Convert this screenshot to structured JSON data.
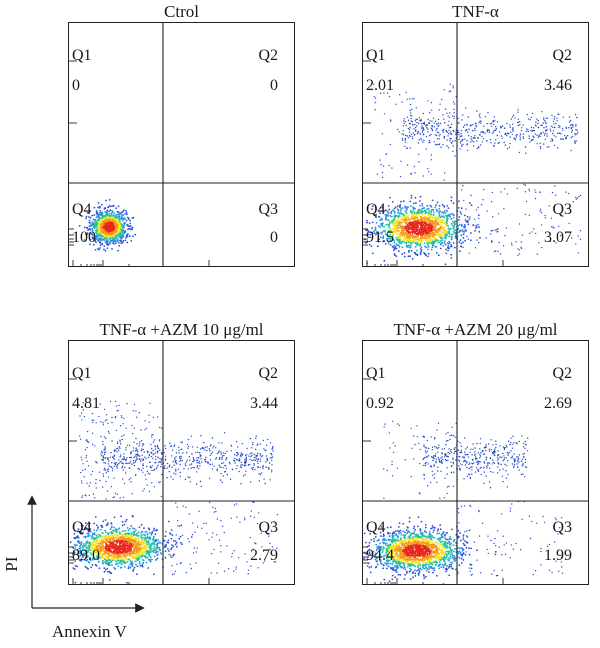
{
  "chart_data": [
    {
      "type": "scatter",
      "title": "Ctrol",
      "quadrants": {
        "Q1": {
          "label": "Q1",
          "value": "0"
        },
        "Q2": {
          "label": "Q2",
          "value": "0"
        },
        "Q3": {
          "label": "Q3",
          "value": "0"
        },
        "Q4": {
          "label": "Q4",
          "value": "100"
        }
      }
    },
    {
      "type": "scatter",
      "title": "TNF-α",
      "quadrants": {
        "Q1": {
          "label": "Q1",
          "value": "2.01"
        },
        "Q2": {
          "label": "Q2",
          "value": "3.46"
        },
        "Q3": {
          "label": "Q3",
          "value": "3.07"
        },
        "Q4": {
          "label": "Q4",
          "value": "91.5"
        }
      }
    },
    {
      "type": "scatter",
      "title": "TNF-α +AZM 10 μg/ml",
      "quadrants": {
        "Q1": {
          "label": "Q1",
          "value": "4.81"
        },
        "Q2": {
          "label": "Q2",
          "value": "3.44"
        },
        "Q3": {
          "label": "Q3",
          "value": "2.79"
        },
        "Q4": {
          "label": "Q4",
          "value": "89.0"
        }
      }
    },
    {
      "type": "scatter",
      "title": "TNF-α +AZM 20 μg/ml",
      "quadrants": {
        "Q1": {
          "label": "Q1",
          "value": "0.92"
        },
        "Q2": {
          "label": "Q2",
          "value": "2.69"
        },
        "Q3": {
          "label": "Q3",
          "value": "1.99"
        },
        "Q4": {
          "label": "Q4",
          "value": "94.4"
        }
      }
    }
  ],
  "axes": {
    "xlabel": "Annexin V",
    "ylabel": "PI"
  },
  "colors": {
    "density_low": "#2a4fd6",
    "density_mid": "#1fc4a8",
    "density_high": "#f7e21b",
    "density_peak": "#e8261c",
    "frame": "#222222"
  }
}
